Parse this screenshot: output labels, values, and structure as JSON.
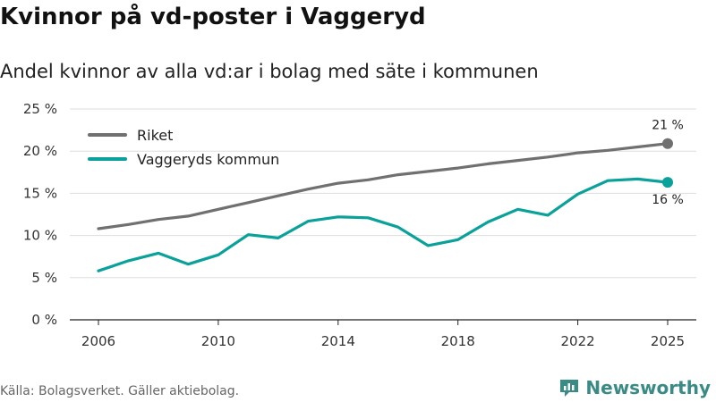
{
  "header": {
    "title": "Kvinnor på vd-poster i Vaggeryd",
    "subtitle": "Andel kvinnor av alla vd:ar i bolag med säte i kommunen"
  },
  "footer": {
    "source": "Källa: Bolagsverket. Gäller aktiebolag.",
    "brand": "Newsworthy"
  },
  "colors": {
    "riket": "#707070",
    "vaggeryd": "#0aa19a",
    "grid": "#dddddd",
    "brand": "#3a8a86"
  },
  "chart_data": {
    "type": "line",
    "title": "Kvinnor på vd-poster i Vaggeryd",
    "subtitle": "Andel kvinnor av alla vd:ar i bolag med säte i kommunen",
    "xlabel": "",
    "ylabel": "",
    "x": [
      2006,
      2007,
      2008,
      2009,
      2010,
      2011,
      2012,
      2013,
      2014,
      2015,
      2016,
      2017,
      2018,
      2019,
      2020,
      2021,
      2022,
      2023,
      2024,
      2025
    ],
    "x_ticks": [
      "2006",
      "2010",
      "2014",
      "2018",
      "2022",
      "2025"
    ],
    "ylim": [
      0,
      25
    ],
    "y_ticks": [
      "0 %",
      "5 %",
      "10 %",
      "15 %",
      "20 %",
      "25 %"
    ],
    "grid": true,
    "legend_position": "top-left",
    "series": [
      {
        "name": "Riket",
        "color": "#707070",
        "values": [
          10.8,
          11.3,
          11.9,
          12.3,
          13.1,
          13.9,
          14.7,
          15.5,
          16.2,
          16.6,
          17.2,
          17.6,
          18.0,
          18.5,
          18.9,
          19.3,
          19.8,
          20.1,
          20.5,
          20.9
        ],
        "end_label": "21 %"
      },
      {
        "name": "Vaggeryds kommun",
        "color": "#0aa19a",
        "values": [
          5.8,
          7.0,
          7.9,
          6.6,
          7.7,
          10.1,
          9.7,
          11.7,
          12.2,
          12.1,
          11.0,
          8.8,
          9.5,
          11.6,
          13.1,
          12.4,
          14.9,
          16.5,
          16.7,
          16.3
        ],
        "end_label": "16 %"
      }
    ]
  }
}
